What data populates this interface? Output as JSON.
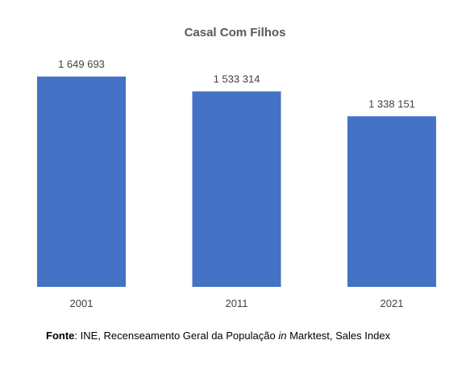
{
  "chart_data": {
    "type": "bar",
    "title": "Casal Com Filhos",
    "categories": [
      "2001",
      "2011",
      "2021"
    ],
    "values": [
      1649693,
      1533314,
      1338151
    ],
    "value_labels": [
      "1 649 693",
      "1 533 314",
      "1 338 151"
    ],
    "ylim": [
      0,
      1649693
    ],
    "grid": false,
    "legend": "none",
    "bar_color": "#4472C4"
  },
  "footer": {
    "source_label": "Fonte",
    "source_text_1": ": INE, Recenseamento Geral da População ",
    "source_italic": "in",
    "source_text_2": " Marktest, Sales Index"
  },
  "colors": {
    "title": "#595959",
    "labels": "#404040"
  }
}
